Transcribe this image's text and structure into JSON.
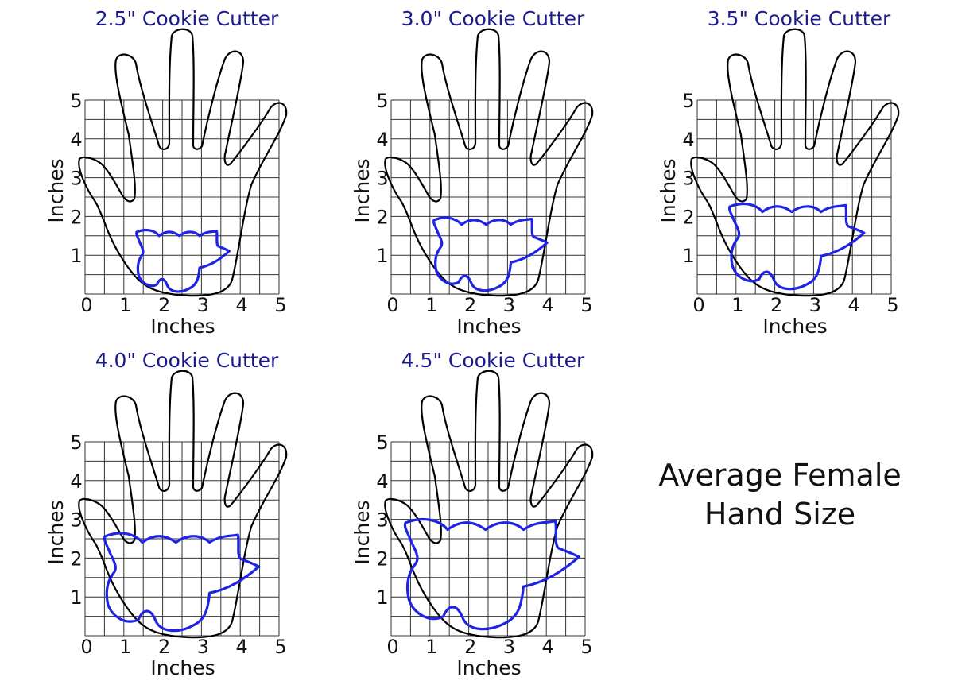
{
  "panels": [
    {
      "title": "2.5\" Cookie Cutter",
      "cutter_size_in": 2.5
    },
    {
      "title": "3.0\" Cookie Cutter",
      "cutter_size_in": 3.0
    },
    {
      "title": "3.5\" Cookie Cutter",
      "cutter_size_in": 3.5
    },
    {
      "title": "4.0\" Cookie Cutter",
      "cutter_size_in": 4.0
    },
    {
      "title": "4.5\" Cookie Cutter",
      "cutter_size_in": 4.5
    }
  ],
  "x_ticks": [
    "0",
    "1",
    "2",
    "3",
    "4",
    "5"
  ],
  "y_ticks": [
    "1",
    "2",
    "3",
    "4",
    "5"
  ],
  "x_label": "Inches",
  "y_label": "Inches",
  "caption": {
    "line1": "Average Female",
    "line2": "Hand Size"
  },
  "colors": {
    "hand": "#000000",
    "cutter": "#1f23e6",
    "title": "#1a1a8c",
    "grid": "#333333"
  }
}
